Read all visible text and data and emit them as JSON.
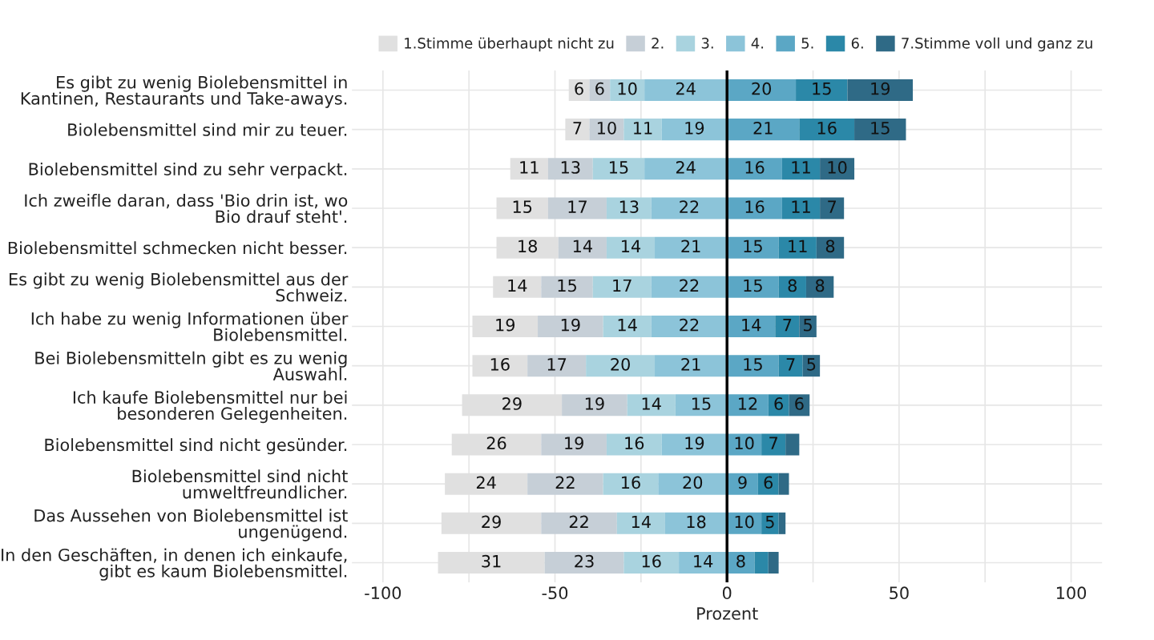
{
  "chart_data": {
    "type": "bar",
    "orientation": "horizontal",
    "stacked": true,
    "xlabel": "Prozent",
    "categories": [
      "Es gibt zu wenig Biolebensmittel in\nKantinen, Restaurants und Take-aways.",
      "Biolebensmittel sind mir zu teuer.",
      "Biolebensmittel sind zu sehr verpackt.",
      "Ich zweifle daran, dass 'Bio drin ist, wo\nBio drauf steht'.",
      "Biolebensmittel schmecken nicht besser.",
      "Es gibt zu wenig Biolebensmittel aus der\nSchweiz.",
      "Ich habe zu wenig Informationen über\nBiolebensmittel.",
      "Bei Biolebensmitteln gibt es zu wenig\nAuswahl.",
      "Ich kaufe Biolebensmittel nur bei\nbesonderen Gelegenheiten.",
      "Biolebensmittel sind nicht gesünder.",
      "Biolebensmittel sind nicht\numweltfreundlicher.",
      "Das Aussehen von Biolebensmittel ist\nungenügend.",
      "In den Geschäften, in denen ich einkaufe,\ngibt es kaum Biolebensmittel."
    ],
    "series": [
      {
        "name": "1.Stimme überhaupt nicht zu",
        "color": "#e0e0e0",
        "values": [
          6,
          7,
          11,
          15,
          18,
          14,
          19,
          16,
          29,
          26,
          24,
          29,
          31
        ],
        "base": [
          -46,
          -47,
          -63,
          -67,
          -67,
          -68,
          -74,
          -74,
          -77,
          -80,
          -82,
          -83,
          -84
        ],
        "value_labels": [
          "6",
          "7",
          "11",
          "15",
          "18",
          "14",
          "19",
          "16",
          "29",
          "26",
          "24",
          "29",
          "31"
        ]
      },
      {
        "name": "2.",
        "color": "#c6cfd7",
        "values": [
          6,
          10,
          13,
          17,
          14,
          15,
          19,
          17,
          19,
          19,
          22,
          22,
          23
        ],
        "base": [
          -40,
          -40,
          -52,
          -52,
          -49,
          -54,
          -55,
          -58,
          -48,
          -54,
          -58,
          -54,
          -53
        ],
        "value_labels": [
          "6",
          "10",
          "13",
          "17",
          "14",
          "15",
          "19",
          "17",
          "19",
          "19",
          "22",
          "22",
          "23"
        ]
      },
      {
        "name": "3.",
        "color": "#a9d3df",
        "values": [
          10,
          11,
          15,
          13,
          14,
          17,
          14,
          20,
          14,
          16,
          16,
          14,
          16
        ],
        "base": [
          -34,
          -30,
          -39,
          -35,
          -35,
          -39,
          -36,
          -41,
          -29,
          -35,
          -36,
          -32,
          -30
        ],
        "value_labels": [
          "10",
          "11",
          "15",
          "13",
          "14",
          "17",
          "14",
          "20",
          "14",
          "16",
          "16",
          "14",
          "16"
        ]
      },
      {
        "name": "4.",
        "color": "#8cc4d9",
        "values": [
          24,
          19,
          24,
          22,
          21,
          22,
          22,
          21,
          15,
          19,
          20,
          18,
          14
        ],
        "base": [
          -24,
          -19,
          -24,
          -22,
          -21,
          -22,
          -22,
          -21,
          -15,
          -19,
          -20,
          -18,
          -14
        ],
        "value_labels": [
          "24",
          "19",
          "24",
          "22",
          "21",
          "22",
          "22",
          "21",
          "15",
          "19",
          "20",
          "18",
          "14"
        ]
      },
      {
        "name": "5.",
        "color": "#5ba7c5",
        "values": [
          20,
          21,
          16,
          16,
          15,
          15,
          14,
          15,
          12,
          10,
          9,
          10,
          8
        ],
        "base": [
          0,
          0,
          0,
          0,
          0,
          0,
          0,
          0,
          0,
          0,
          0,
          0,
          0
        ],
        "value_labels": [
          "20",
          "21",
          "16",
          "16",
          "15",
          "15",
          "14",
          "15",
          "12",
          "10",
          "9",
          "10",
          "8"
        ]
      },
      {
        "name": "6.",
        "color": "#2b88a8",
        "values": [
          15,
          16,
          11,
          11,
          11,
          8,
          7,
          7,
          6,
          7,
          6,
          5,
          4
        ],
        "base": [
          20,
          21,
          16,
          16,
          15,
          15,
          14,
          15,
          12,
          10,
          9,
          10,
          8
        ],
        "value_labels": [
          "15",
          "16",
          "11",
          "11",
          "11",
          "8",
          "7",
          "7",
          "6",
          "7",
          "6",
          "5",
          null
        ]
      },
      {
        "name": "7.Stimme voll und ganz zu",
        "color": "#2f6a86",
        "values": [
          19,
          15,
          10,
          7,
          8,
          8,
          5,
          5,
          6,
          4,
          3,
          2,
          3
        ],
        "base": [
          35,
          37,
          27,
          27,
          26,
          23,
          21,
          22,
          18,
          17,
          15,
          15,
          12
        ],
        "value_labels": [
          "19",
          "15",
          "10",
          "7",
          "8",
          "8",
          "5",
          "5",
          "6",
          null,
          null,
          null,
          null
        ]
      }
    ],
    "xlim": [
      -109,
      109
    ],
    "xticks": [
      -100,
      {
        "value": -75,
        "label": null
      },
      -50,
      {
        "value": -25,
        "label": null
      },
      0,
      {
        "value": 25,
        "label": null
      },
      50,
      {
        "value": 75,
        "label": null
      },
      100
    ],
    "ref_lines": [
      {
        "axis": "x",
        "value": 0,
        "color": "#000000"
      }
    ],
    "grid": true,
    "legend": "top right"
  }
}
